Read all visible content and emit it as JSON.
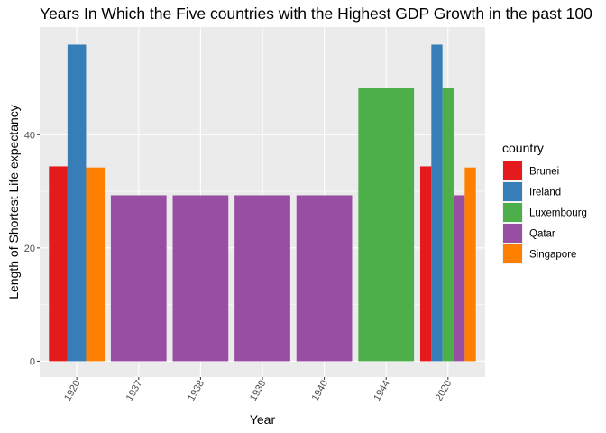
{
  "chart_data": {
    "type": "bar",
    "title": "Years In Which the Five countries with the Highest GDP Growth in the past 100",
    "xlabel": "Year",
    "ylabel": "Length of Shortest Life expectancy",
    "categories": [
      "1920",
      "1937",
      "1938",
      "1939",
      "1940",
      "1944",
      "2020"
    ],
    "ylim": [
      -2.8,
      59.0
    ],
    "yticks": [
      0,
      20,
      40
    ],
    "grid": true,
    "legend": {
      "title": "country",
      "placement": "right",
      "entries": [
        "Brunei",
        "Ireland",
        "Luxembourg",
        "Qatar",
        "Singapore"
      ]
    },
    "colors": {
      "Brunei": "#E41A1C",
      "Ireland": "#377EB8",
      "Luxembourg": "#4DAF4A",
      "Qatar": "#984EA3",
      "Singapore": "#FF7F00"
    },
    "bars": [
      {
        "category": "1920",
        "country": "Brunei",
        "value": 34.4
      },
      {
        "category": "1920",
        "country": "Ireland",
        "value": 55.9
      },
      {
        "category": "1920",
        "country": "Singapore",
        "value": 34.2
      },
      {
        "category": "1937",
        "country": "Qatar",
        "value": 29.3
      },
      {
        "category": "1938",
        "country": "Qatar",
        "value": 29.3
      },
      {
        "category": "1939",
        "country": "Qatar",
        "value": 29.3
      },
      {
        "category": "1940",
        "country": "Qatar",
        "value": 29.3
      },
      {
        "category": "1944",
        "country": "Luxembourg",
        "value": 48.2
      },
      {
        "category": "2020",
        "country": "Brunei",
        "value": 34.4
      },
      {
        "category": "2020",
        "country": "Ireland",
        "value": 55.9
      },
      {
        "category": "2020",
        "country": "Luxembourg",
        "value": 48.2
      },
      {
        "category": "2020",
        "country": "Qatar",
        "value": 29.3
      },
      {
        "category": "2020",
        "country": "Singapore",
        "value": 34.2
      }
    ]
  }
}
